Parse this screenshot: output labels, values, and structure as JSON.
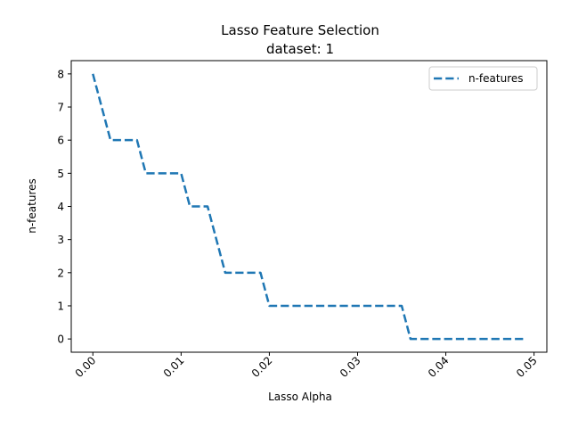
{
  "chart_data": {
    "type": "line",
    "title": "Lasso Feature Selection",
    "subtitle": "dataset: 1",
    "xlabel": "Lasso Alpha",
    "ylabel": "n-features",
    "xlim": [
      -0.00245,
      0.05145
    ],
    "ylim": [
      -0.4,
      8.4
    ],
    "xticks": [
      0.0,
      0.01,
      0.02,
      0.03,
      0.04,
      0.05
    ],
    "xtick_labels": [
      "0.00",
      "0.01",
      "0.02",
      "0.03",
      "0.04",
      "0.05"
    ],
    "yticks": [
      0,
      1,
      2,
      3,
      4,
      5,
      6,
      7,
      8
    ],
    "ytick_labels": [
      "0",
      "1",
      "2",
      "3",
      "4",
      "5",
      "6",
      "7",
      "8"
    ],
    "grid": false,
    "legend_position": "upper right",
    "series": [
      {
        "name": "n-features",
        "color": "#1f77b4",
        "linestyle": "dashed",
        "x": [
          0.0,
          0.001,
          0.002,
          0.003,
          0.004,
          0.005,
          0.006,
          0.007,
          0.008,
          0.009,
          0.01,
          0.011,
          0.012,
          0.013,
          0.014,
          0.015,
          0.016,
          0.017,
          0.018,
          0.019,
          0.02,
          0.021,
          0.022,
          0.023,
          0.024,
          0.025,
          0.026,
          0.027,
          0.028,
          0.029,
          0.03,
          0.031,
          0.032,
          0.033,
          0.034,
          0.035,
          0.036,
          0.037,
          0.038,
          0.039,
          0.04,
          0.041,
          0.042,
          0.043,
          0.044,
          0.045,
          0.046,
          0.047,
          0.048,
          0.049
        ],
        "y": [
          8,
          7,
          6,
          6,
          6,
          6,
          5,
          5,
          5,
          5,
          5,
          4,
          4,
          4,
          3,
          2,
          2,
          2,
          2,
          2,
          1,
          1,
          1,
          1,
          1,
          1,
          1,
          1,
          1,
          1,
          1,
          1,
          1,
          1,
          1,
          1,
          0,
          0,
          0,
          0,
          0,
          0,
          0,
          0,
          0,
          0,
          0,
          0,
          0,
          0
        ]
      }
    ]
  }
}
